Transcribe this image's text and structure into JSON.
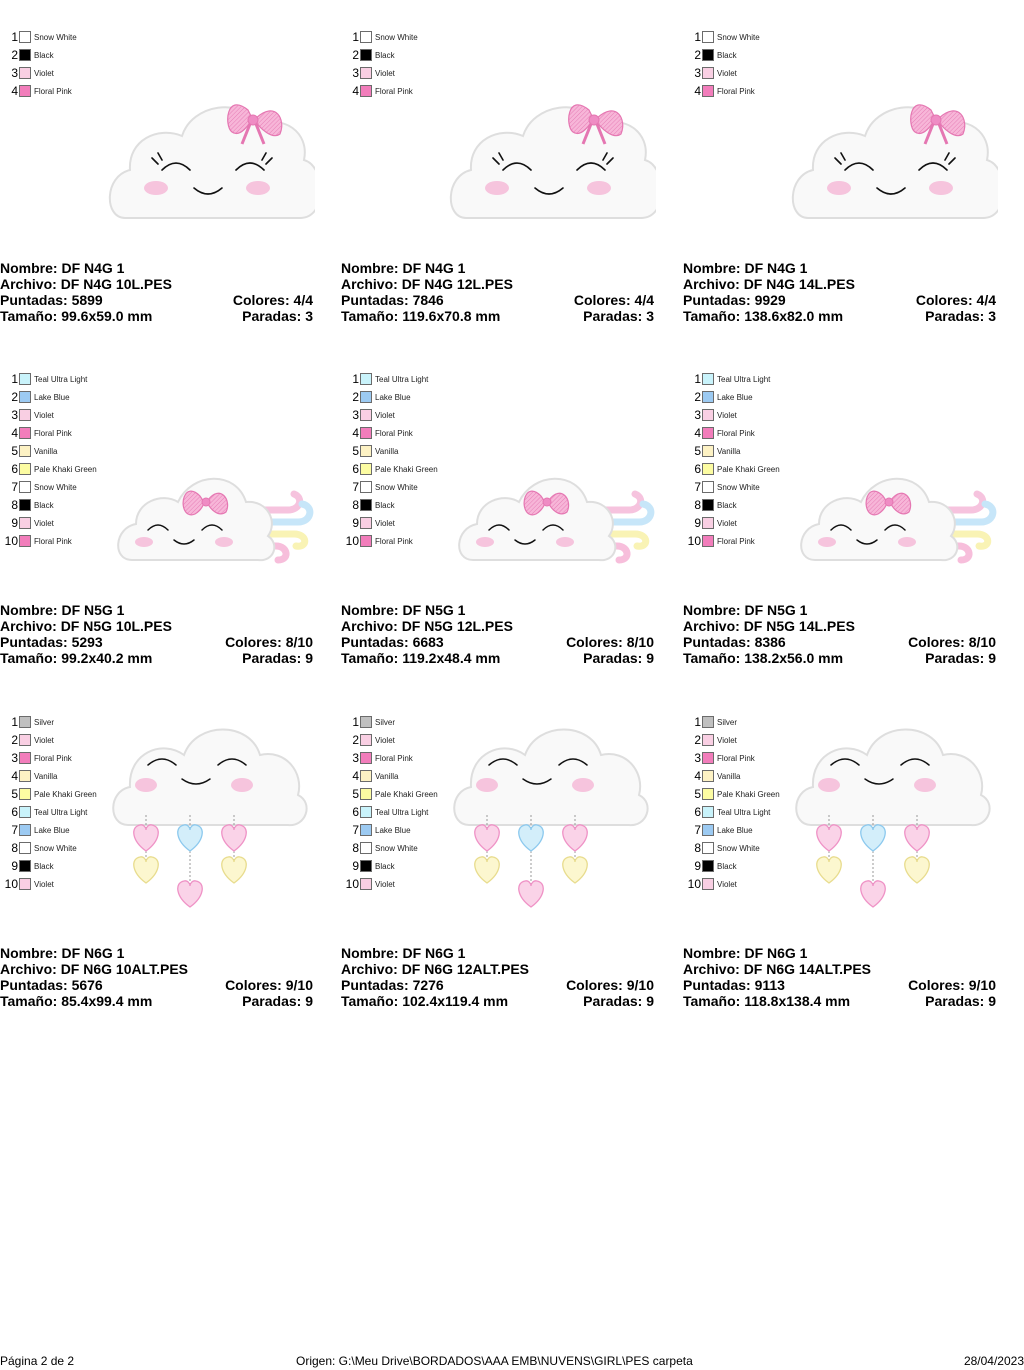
{
  "page": {
    "footer_left": "Página 2 de 2",
    "footer_center": "Origen: G:\\Meu Drive\\BORDADOS\\AAA EMB\\NUVENS\\GIRL\\PES carpeta",
    "footer_right": "28/04/2023"
  },
  "labels": {
    "name": "Nombre:",
    "file": "Archivo:",
    "stitches": "Puntadas:",
    "colors": "Colores:",
    "size": "Tamaño:",
    "stops": "Paradas:"
  },
  "colors": {
    "Snow White": "#ffffff",
    "Black": "#000000",
    "Violet": "#f9cfe3",
    "Floral Pink": "#f27dbb",
    "Teal Ultra Light": "#c9f3fb",
    "Lake Blue": "#9ccaf2",
    "Vanilla": "#fdf2c4",
    "Pale Khaki Green": "#fcfca2",
    "Silver": "#c0c0c0"
  },
  "designs": [
    {
      "design": "n4g",
      "palette": [
        {
          "num": "1",
          "name": "Snow White"
        },
        {
          "num": "2",
          "name": "Black"
        },
        {
          "num": "3",
          "name": "Violet"
        },
        {
          "num": "4",
          "name": "Floral Pink"
        }
      ],
      "variants": [
        {
          "name": "DF N4G 1",
          "file": "DF N4G 10L.PES",
          "stitches": "5899",
          "colors": "4/4",
          "size": "99.6x59.0 mm",
          "stops": "3"
        },
        {
          "name": "DF N4G 1",
          "file": "DF N4G 12L.PES",
          "stitches": "7846",
          "colors": "4/4",
          "size": "119.6x70.8 mm",
          "stops": "3"
        },
        {
          "name": "DF N4G 1",
          "file": "DF N4G 14L.PES",
          "stitches": "9929",
          "colors": "4/4",
          "size": "138.6x82.0 mm",
          "stops": "3"
        }
      ]
    },
    {
      "design": "n5g",
      "palette": [
        {
          "num": "1",
          "name": "Teal Ultra Light"
        },
        {
          "num": "2",
          "name": "Lake Blue"
        },
        {
          "num": "3",
          "name": "Violet"
        },
        {
          "num": "4",
          "name": "Floral Pink"
        },
        {
          "num": "5",
          "name": "Vanilla"
        },
        {
          "num": "6",
          "name": "Pale Khaki Green"
        },
        {
          "num": "7",
          "name": "Snow White"
        },
        {
          "num": "8",
          "name": "Black"
        },
        {
          "num": "9",
          "name": "Violet"
        },
        {
          "num": "10",
          "name": "Floral Pink"
        }
      ],
      "variants": [
        {
          "name": "DF N5G 1",
          "file": "DF N5G 10L.PES",
          "stitches": "5293",
          "colors": "8/10",
          "size": "99.2x40.2 mm",
          "stops": "9"
        },
        {
          "name": "DF N5G 1",
          "file": "DF N5G 12L.PES",
          "stitches": "6683",
          "colors": "8/10",
          "size": "119.2x48.4 mm",
          "stops": "9"
        },
        {
          "name": "DF N5G 1",
          "file": "DF N5G 14L.PES",
          "stitches": "8386",
          "colors": "8/10",
          "size": "138.2x56.0 mm",
          "stops": "9"
        }
      ]
    },
    {
      "design": "n6g",
      "palette": [
        {
          "num": "1",
          "name": "Silver"
        },
        {
          "num": "2",
          "name": "Violet"
        },
        {
          "num": "3",
          "name": "Floral Pink"
        },
        {
          "num": "4",
          "name": "Vanilla"
        },
        {
          "num": "5",
          "name": "Pale Khaki Green"
        },
        {
          "num": "6",
          "name": "Teal Ultra Light"
        },
        {
          "num": "7",
          "name": "Lake Blue"
        },
        {
          "num": "8",
          "name": "Snow White"
        },
        {
          "num": "9",
          "name": "Black"
        },
        {
          "num": "10",
          "name": "Violet"
        }
      ],
      "variants": [
        {
          "name": "DF N6G 1",
          "file": "DF N6G 10ALT.PES",
          "stitches": "5676",
          "colors": "9/10",
          "size": "85.4x99.4 mm",
          "stops": "9"
        },
        {
          "name": "DF N6G 1",
          "file": "DF N6G 12ALT.PES",
          "stitches": "7276",
          "colors": "9/10",
          "size": "102.4x119.4 mm",
          "stops": "9"
        },
        {
          "name": "DF N6G 1",
          "file": "DF N6G 14ALT.PES",
          "stitches": "9113",
          "colors": "9/10",
          "size": "118.8x138.4 mm",
          "stops": "9"
        }
      ]
    }
  ]
}
